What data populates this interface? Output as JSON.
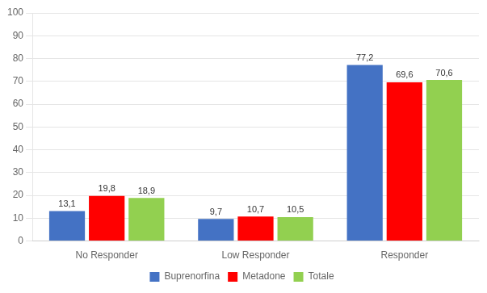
{
  "chart_data": {
    "type": "bar",
    "categories": [
      "No Responder",
      "Low Responder",
      "Responder"
    ],
    "series": [
      {
        "name": "Buprenorfina",
        "color": "#4472C4",
        "values": [
          13.1,
          9.7,
          77.2
        ],
        "value_labels": [
          "13,1",
          "9,7",
          "77,2"
        ]
      },
      {
        "name": "Metadone",
        "color": "#FF0000",
        "values": [
          19.8,
          10.7,
          69.6
        ],
        "value_labels": [
          "19,8",
          "10,7",
          "69,6"
        ]
      },
      {
        "name": "Totale",
        "color": "#92D050",
        "values": [
          18.9,
          10.5,
          70.6
        ],
        "value_labels": [
          "18,9",
          "10,5",
          "70,6"
        ]
      }
    ],
    "ylim": [
      0,
      100
    ],
    "yticks": [
      0,
      10,
      20,
      30,
      40,
      50,
      60,
      70,
      80,
      90,
      100
    ],
    "grid": true,
    "legend": "bottom",
    "data_labels": true
  }
}
